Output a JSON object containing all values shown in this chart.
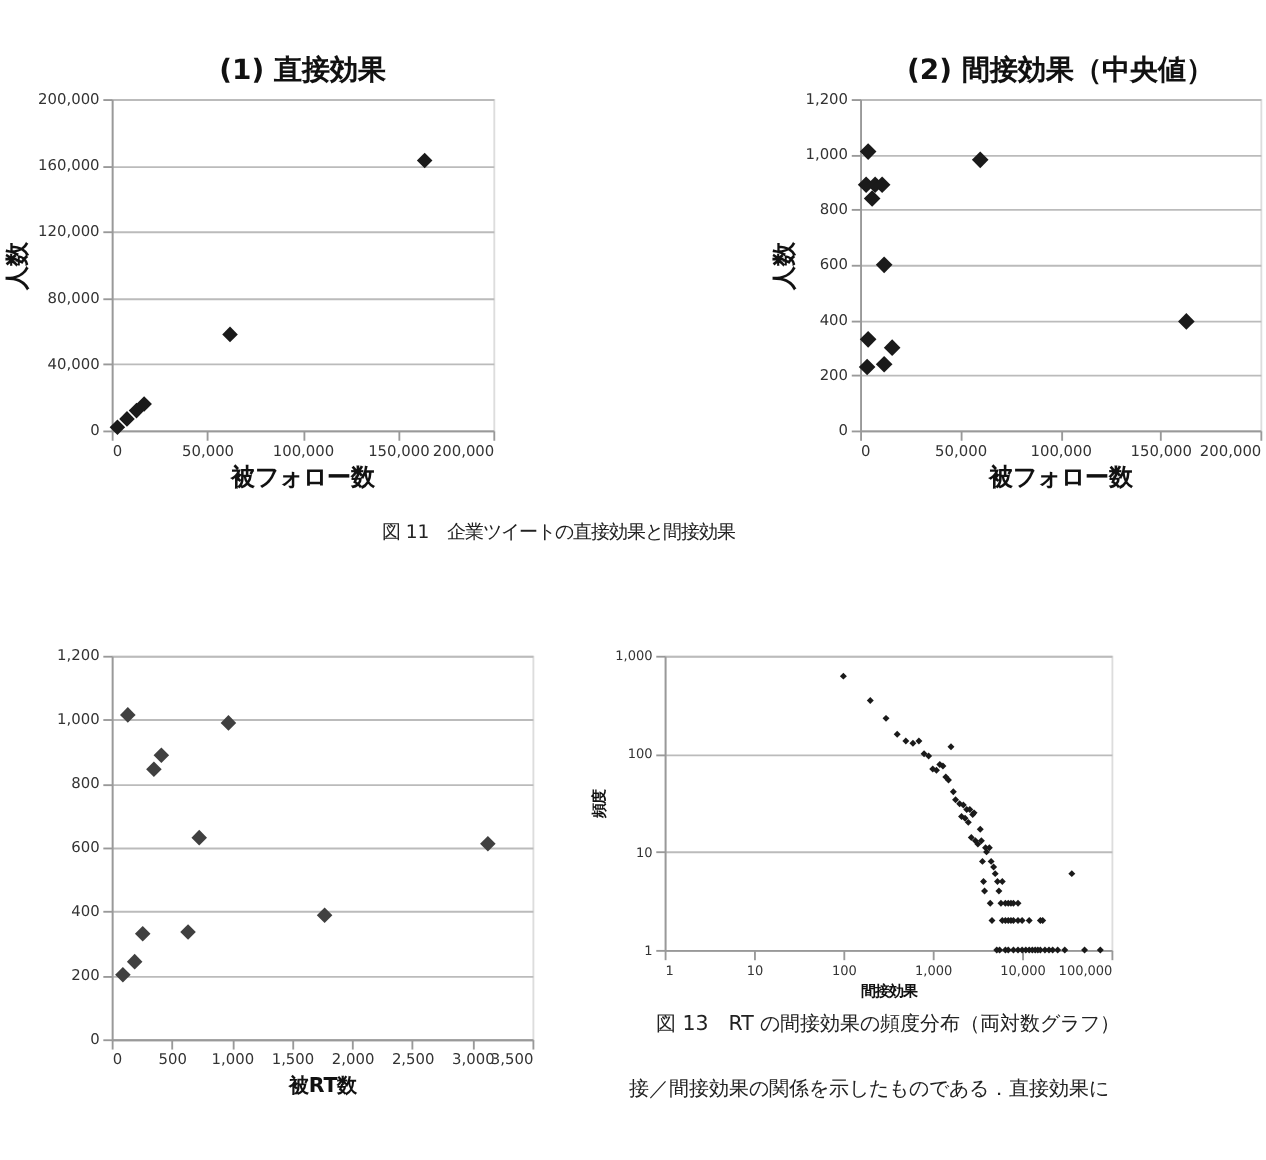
{
  "chart_data": [
    {
      "type": "scatter",
      "title": "(1) 直接効果",
      "xlabel": "被フォロー数",
      "ylabel": "人数",
      "marker": "diamond",
      "grid": "y",
      "x": [
        3000,
        8000,
        13000,
        17000,
        62000,
        164000
      ],
      "series": [
        {
          "color": "#1a1a1a",
          "values": [
            2000,
            7000,
            12000,
            16000,
            58000,
            163000
          ]
        }
      ],
      "xlim": [
        0,
        200000
      ],
      "xticks": [
        0,
        {
          "value": 50000,
          "label": "50,000"
        },
        {
          "value": 100000,
          "label": "100,000"
        },
        {
          "value": 150000,
          "label": "150,000"
        },
        {
          "value": 200000,
          "label": "200,000"
        }
      ],
      "ylim": [
        0,
        200000
      ],
      "yticks": [
        0,
        {
          "value": 40000,
          "label": "40,000"
        },
        {
          "value": 80000,
          "label": "80,000"
        },
        {
          "value": 120000,
          "label": "120,000"
        },
        {
          "value": 160000,
          "label": "160,000"
        },
        {
          "value": 200000,
          "label": "200,000"
        }
      ],
      "annotations": [
        "図 11　企業ツイートの直接効果と間接効果"
      ]
    },
    {
      "type": "scatter",
      "title": "(2) 間接効果（中央値）",
      "xlabel": "被フォロー数",
      "ylabel": "人数",
      "marker": "diamond",
      "grid": "y",
      "x": [
        4000,
        3000,
        7500,
        6000,
        11000,
        12000,
        4000,
        3500,
        12000,
        16000,
        60000,
        163000
      ],
      "series": [
        {
          "color": "#1a1a1a",
          "values": [
            1010,
            890,
            890,
            840,
            890,
            600,
            330,
            230,
            240,
            300,
            980,
            395
          ]
        }
      ],
      "xlim": [
        0,
        200000
      ],
      "xticks": [
        0,
        {
          "value": 50000,
          "label": "50,000"
        },
        {
          "value": 100000,
          "label": "100,000"
        },
        {
          "value": 150000,
          "label": "150,000"
        },
        {
          "value": 200000,
          "label": "200,000"
        }
      ],
      "ylim": [
        0,
        1200
      ],
      "yticks": [
        0,
        200,
        400,
        600,
        800,
        {
          "value": 1000,
          "label": "1,000"
        },
        {
          "value": 1200,
          "label": "1,200"
        }
      ]
    },
    {
      "type": "scatter",
      "xlabel": "被RT数",
      "marker": "diamond",
      "grid": "y",
      "x": [
        134,
        971,
        413,
        351,
        728,
        3129,
        1771,
        635,
        258,
        191,
        93
      ],
      "series": [
        {
          "color": "#404040",
          "values": [
            1015,
            990,
            889,
            845,
            631,
            612,
            388,
            336,
            330,
            243,
            202
          ]
        }
      ],
      "xlim": [
        0,
        3500
      ],
      "xticks": [
        0,
        500,
        {
          "value": 1000,
          "label": "1,000"
        },
        {
          "value": 1500,
          "label": "1,500"
        },
        {
          "value": 2000,
          "label": "2,000"
        },
        {
          "value": 2500,
          "label": "2,500"
        },
        {
          "value": 3000,
          "label": "3,000"
        },
        {
          "value": 3500,
          "label": "3,500"
        }
      ],
      "ylim": [
        0,
        1200
      ],
      "yticks": [
        0,
        200,
        400,
        600,
        800,
        {
          "value": 1000,
          "label": "1,000"
        },
        {
          "value": 1200,
          "label": "1,200"
        }
      ]
    },
    {
      "type": "scatter",
      "xlabel": "間接効果",
      "ylabel": "頻度",
      "marker": "diamond",
      "grid": "y",
      "log": "xy",
      "x": [
        100,
        200,
        300,
        400,
        500,
        600,
        700,
        800,
        900,
        1000,
        1100,
        1200,
        1300,
        1400,
        1500,
        1600,
        1700,
        1800,
        2000,
        2100,
        2200,
        2300,
        2400,
        2500,
        2600,
        2700,
        2800,
        2900,
        3000,
        3200,
        3400,
        3500,
        3600,
        3700,
        3800,
        3900,
        4000,
        4300,
        4400,
        4500,
        4600,
        4800,
        5000,
        5300,
        5500,
        5800,
        6000,
        5200,
        5600,
        6000,
        6500,
        7000,
        7500,
        8000,
        9000,
        6500,
        7000,
        7500,
        8000,
        9000,
        10000,
        12000,
        16000,
        17000,
        6500,
        7000,
        8000,
        9000,
        10000,
        11000,
        12000,
        13000,
        14000,
        15000,
        16000,
        18000,
        20000,
        22000,
        25000,
        30000,
        50000,
        75000,
        36000
      ],
      "series": [
        {
          "color": "#1a1a1a",
          "values": [
            620,
            350,
            230,
            158,
            135,
            128,
            135,
            100,
            95,
            70,
            68,
            78,
            75,
            58,
            54,
            118,
            41,
            34,
            31,
            23,
            30,
            22,
            27,
            20,
            27,
            14,
            24,
            25,
            13,
            12,
            17,
            13,
            8,
            5,
            4,
            11,
            10,
            11,
            3,
            8,
            2,
            7,
            6,
            5,
            4,
            3,
            5,
            1,
            1,
            2,
            3,
            3,
            3,
            3,
            3,
            2,
            2,
            2,
            2,
            2,
            2,
            2,
            2,
            2,
            1,
            1,
            1,
            1,
            1,
            1,
            1,
            1,
            1,
            1,
            1,
            1,
            1,
            1,
            1,
            1,
            1,
            1,
            6
          ]
        }
      ],
      "xlim": [
        1,
        100000
      ],
      "xticks": [
        1,
        10,
        100,
        {
          "value": 1000,
          "label": "1,000"
        },
        {
          "value": 10000,
          "label": "10,000"
        },
        {
          "value": 100000,
          "label": "100,000"
        }
      ],
      "ylim": [
        1,
        1000
      ],
      "yticks": [
        1,
        10,
        100,
        {
          "value": 1000,
          "label": "1,000"
        }
      ],
      "annotations": [
        "図 13　RT の間接効果の頻度分布（両対数グラフ）",
        "接／間接効果の関係を示したものである．直接効果に"
      ]
    }
  ]
}
